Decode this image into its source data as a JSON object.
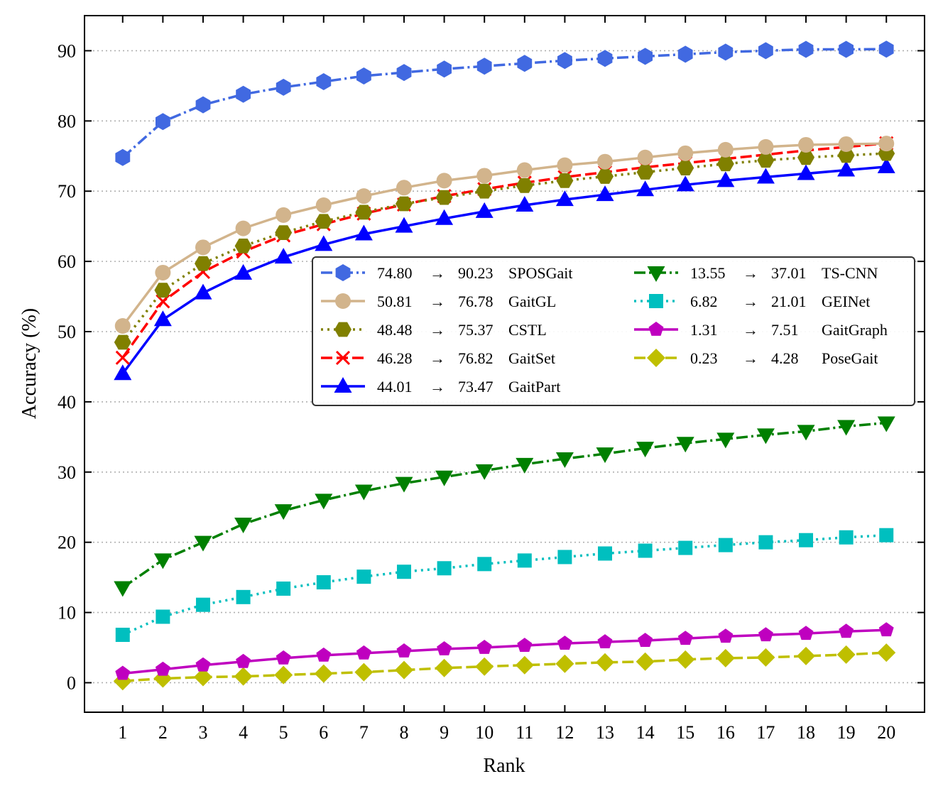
{
  "chart_data": {
    "type": "line",
    "title": "",
    "xlabel": "Rank",
    "ylabel": "Accuracy (%)",
    "xlim": [
      0.05,
      20.95
    ],
    "ylim": [
      -4.2,
      95
    ],
    "yticks": [
      0,
      10,
      20,
      30,
      40,
      50,
      60,
      70,
      80,
      90
    ],
    "grid": "horizontal-dotted",
    "legend_position": "center-right",
    "x": [
      1,
      2,
      3,
      4,
      5,
      6,
      7,
      8,
      9,
      10,
      11,
      12,
      13,
      14,
      15,
      16,
      17,
      18,
      19,
      20
    ],
    "series": [
      {
        "name": "SPOSGait",
        "start": "74.80",
        "end": "90.23",
        "color": "#4169e1",
        "marker": "hexagon",
        "dash": "dashdot",
        "values": [
          74.8,
          79.9,
          82.3,
          83.8,
          84.8,
          85.6,
          86.4,
          86.9,
          87.4,
          87.8,
          88.2,
          88.6,
          88.9,
          89.2,
          89.5,
          89.8,
          90.0,
          90.2,
          90.2,
          90.23
        ]
      },
      {
        "name": "GaitGL",
        "start": "50.81",
        "end": "76.78",
        "color": "#d2b48c",
        "marker": "circle",
        "dash": "solid",
        "values": [
          50.81,
          58.4,
          62.0,
          64.7,
          66.6,
          68.0,
          69.3,
          70.5,
          71.5,
          72.2,
          73.0,
          73.7,
          74.2,
          74.8,
          75.4,
          75.9,
          76.3,
          76.6,
          76.7,
          76.78
        ]
      },
      {
        "name": "CSTL",
        "start": "48.48",
        "end": "75.37",
        "color": "#808000",
        "marker": "hexagon2",
        "dash": "dotted",
        "values": [
          48.48,
          55.9,
          59.7,
          62.2,
          64.1,
          65.7,
          67.0,
          68.2,
          69.1,
          70.0,
          70.8,
          71.5,
          72.1,
          72.7,
          73.3,
          73.9,
          74.4,
          74.8,
          75.1,
          75.37
        ]
      },
      {
        "name": "GaitSet",
        "start": "46.28",
        "end": "76.82",
        "color": "#ff0000",
        "marker": "x",
        "dash": "dashed",
        "values": [
          46.28,
          54.3,
          58.5,
          61.4,
          63.7,
          65.3,
          66.8,
          68.1,
          69.3,
          70.3,
          71.2,
          72.0,
          72.7,
          73.4,
          74.0,
          74.6,
          75.2,
          75.8,
          76.3,
          76.82
        ]
      },
      {
        "name": "GaitPart",
        "start": "44.01",
        "end": "73.47",
        "color": "#0000ff",
        "marker": "triangle-up",
        "dash": "solid",
        "values": [
          44.01,
          51.7,
          55.5,
          58.3,
          60.6,
          62.4,
          63.9,
          65.0,
          66.1,
          67.1,
          68.0,
          68.8,
          69.5,
          70.2,
          70.9,
          71.5,
          72.0,
          72.5,
          73.0,
          73.47
        ]
      },
      {
        "name": "TS-CNN",
        "start": "13.55",
        "end": "37.01",
        "color": "#008000",
        "marker": "triangle-down",
        "dash": "dashdot",
        "values": [
          13.55,
          17.5,
          20.0,
          22.6,
          24.5,
          26.0,
          27.3,
          28.4,
          29.3,
          30.2,
          31.1,
          31.9,
          32.6,
          33.4,
          34.1,
          34.7,
          35.3,
          35.8,
          36.5,
          37.01
        ]
      },
      {
        "name": "GEINet",
        "start": "6.82",
        "end": "21.01",
        "color": "#00bfbf",
        "marker": "square",
        "dash": "dotted",
        "values": [
          6.82,
          9.4,
          11.1,
          12.2,
          13.4,
          14.3,
          15.1,
          15.8,
          16.3,
          16.9,
          17.4,
          17.9,
          18.4,
          18.8,
          19.2,
          19.6,
          20.0,
          20.3,
          20.7,
          21.01
        ]
      },
      {
        "name": "GaitGraph",
        "start": "1.31",
        "end": "7.51",
        "color": "#bf00bf",
        "marker": "pentagon",
        "dash": "solid",
        "values": [
          1.31,
          1.9,
          2.5,
          3.0,
          3.5,
          3.9,
          4.2,
          4.5,
          4.8,
          5.0,
          5.3,
          5.6,
          5.8,
          6.0,
          6.3,
          6.6,
          6.8,
          7.0,
          7.3,
          7.51
        ]
      },
      {
        "name": "PoseGait",
        "start": "0.23",
        "end": "4.28",
        "color": "#bfbf00",
        "marker": "diamond",
        "dash": "dashed",
        "values": [
          0.23,
          0.6,
          0.8,
          0.9,
          1.1,
          1.3,
          1.5,
          1.8,
          2.1,
          2.3,
          2.5,
          2.7,
          2.9,
          3.0,
          3.3,
          3.5,
          3.6,
          3.8,
          4.0,
          4.28
        ]
      }
    ]
  }
}
